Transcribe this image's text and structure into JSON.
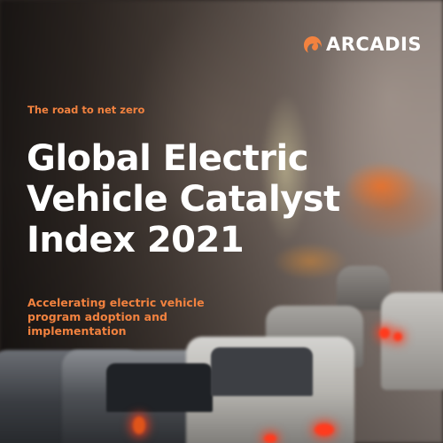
{
  "brand": {
    "name": "ARCADIS",
    "logo_icon": "arcadis-flame-icon",
    "accent_color": "#f2823f"
  },
  "cover": {
    "kicker": "The road to net zero",
    "title_lines": [
      "Global Electric",
      "Vehicle Catalyst",
      "Index 2021"
    ],
    "subtitle_lines": [
      "Accelerating electric vehicle",
      "program adoption and",
      "implementation"
    ],
    "background": "blurred-traffic-street-photo"
  }
}
